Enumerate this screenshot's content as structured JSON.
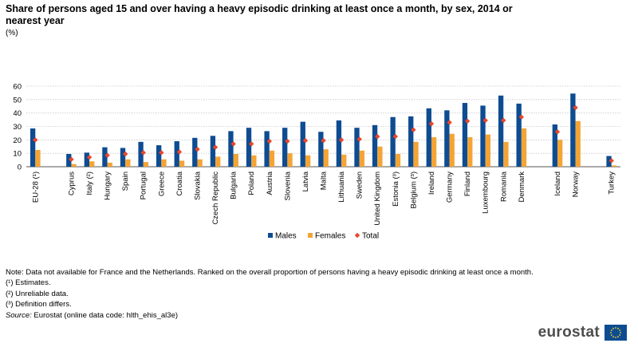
{
  "title": "Share of persons aged 15 and over having a heavy episodic drinking at least once a month, by sex, 2014 or nearest year",
  "unit": "(%)",
  "chart_data": {
    "type": "bar",
    "categories": [
      "EU-28 (¹)",
      "Cyprus",
      "Italy (²)",
      "Hungary",
      "Spain",
      "Portugal",
      "Greece",
      "Croatia",
      "Slovakia",
      "Czech Republic",
      "Bulgaria",
      "Poland",
      "Austria",
      "Slovenia",
      "Latvia",
      "Malta",
      "Lithuania",
      "Sweden",
      "United Kingdom",
      "Estonia (³)",
      "Belgium (³)",
      "Ireland",
      "Germany",
      "Finland",
      "Luxembourg",
      "Romania",
      "Denmark",
      "Iceland",
      "Norway",
      "Turkey"
    ],
    "groups_gap_after": [
      0,
      26,
      28
    ],
    "series": [
      {
        "name": "Males",
        "type": "bar",
        "color": "#0e4c92",
        "values": [
          28.5,
          9.5,
          10.5,
          14.5,
          14,
          18.5,
          16,
          19,
          21.5,
          23,
          26.5,
          29,
          26.5,
          29,
          33.5,
          26,
          34.5,
          29,
          31,
          37,
          37.5,
          43.5,
          42,
          47.5,
          45.5,
          53,
          47,
          31.5,
          54.5,
          8
        ]
      },
      {
        "name": "Females",
        "type": "bar",
        "color": "#f3a435",
        "values": [
          12.5,
          2,
          4,
          3,
          5.5,
          3.5,
          5.5,
          4.5,
          5.5,
          7.5,
          9.5,
          8.5,
          12,
          10,
          8.5,
          13,
          9,
          12,
          15,
          9.5,
          18.5,
          22,
          24.5,
          22,
          24,
          18.5,
          28.5,
          20,
          34,
          1
        ]
      },
      {
        "name": "Total",
        "type": "point",
        "color": "#e8462c",
        "values": [
          20,
          5.5,
          7,
          8.5,
          9.5,
          10.5,
          10.5,
          11,
          13,
          14.5,
          17,
          17,
          19,
          19,
          19.5,
          19.5,
          20,
          20.5,
          22.5,
          22.5,
          27.5,
          32,
          33,
          34,
          34.5,
          34.5,
          37,
          26,
          44,
          4.5
        ]
      }
    ],
    "ylim": [
      0,
      60
    ],
    "yticks": [
      0,
      10,
      20,
      30,
      40,
      50,
      60
    ],
    "grid": true,
    "legend_position": "bottom-center"
  },
  "notes": [
    "Note: Data not available for France and the Netherlands. Ranked on the overall proportion of persons having a heavy episodic drinking at least once a month.",
    "(¹) Estimates.",
    "(²) Unreliable data.",
    "(³) Definition differs."
  ],
  "source": {
    "label": "Source:",
    "text": " Eurostat (online data code: hlth_ehis_al3e)"
  },
  "logo": {
    "text": "eurostat",
    "icon": "eu-flag-icon"
  }
}
